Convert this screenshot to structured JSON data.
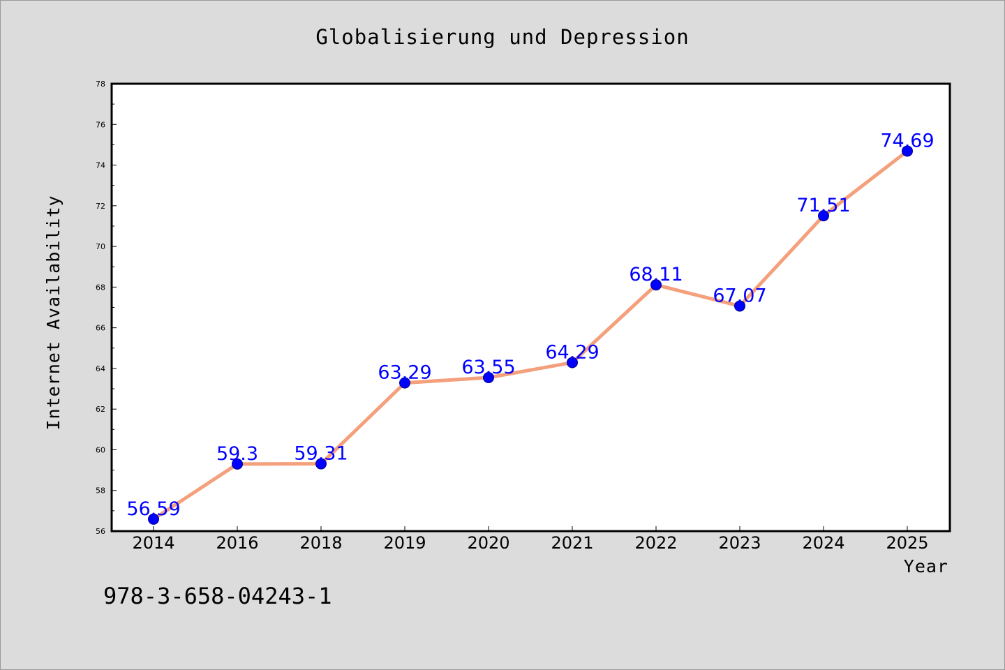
{
  "chart_data": {
    "type": "line",
    "title": "Globalisierung und Depression",
    "xlabel": "Year",
    "ylabel": "Internet Availability",
    "categories": [
      "2014",
      "2016",
      "2018",
      "2019",
      "2020",
      "2021",
      "2022",
      "2023",
      "2024",
      "2025"
    ],
    "series": [
      {
        "values": [
          56.59,
          59.3,
          59.31,
          63.29,
          63.55,
          64.29,
          68.11,
          67.07,
          71.51,
          74.69
        ],
        "labels": [
          "56.59",
          "59.3",
          "59.31",
          "63.29",
          "63.55",
          "64.29",
          "68.11",
          "67.07",
          "71.51",
          "74.69"
        ],
        "line_color": "#f4a07c",
        "marker_color": "#0000ff",
        "label_color": "#0000ff"
      }
    ],
    "ylim": [
      56,
      78
    ],
    "yticks": [
      "56",
      "58",
      "60",
      "62",
      "64",
      "66",
      "68",
      "70",
      "72",
      "74",
      "76",
      "78"
    ],
    "grid": false,
    "legend": "none"
  },
  "footer": {
    "text": "978-3-658-04243-1"
  },
  "colors": {
    "background": "#dcdcdc",
    "plot_background": "#ffffff",
    "frame": "#000000"
  }
}
